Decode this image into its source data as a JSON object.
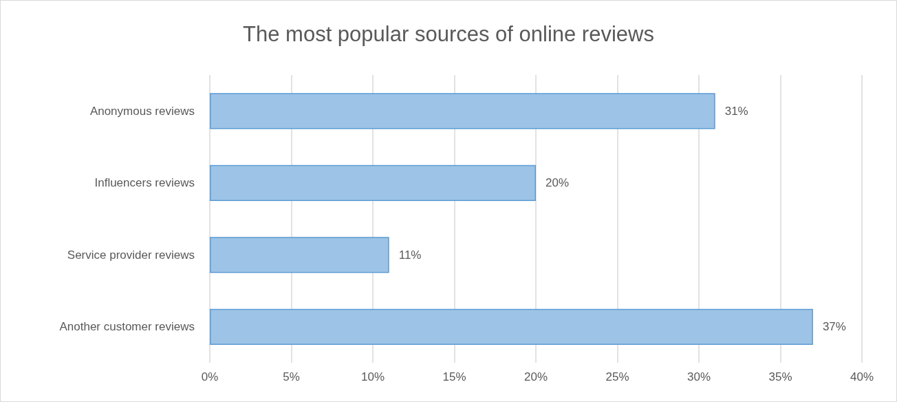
{
  "chart_data": {
    "type": "bar",
    "orientation": "horizontal",
    "title": "The most popular sources of online reviews",
    "categories": [
      "Anonymous reviews",
      "Influencers reviews",
      "Service provider reviews",
      "Another customer reviews"
    ],
    "values": [
      31,
      20,
      11,
      37
    ],
    "value_labels": [
      "31%",
      "20%",
      "11%",
      "37%"
    ],
    "color": "#9dc3e6",
    "xlim": [
      0,
      40
    ],
    "xticks": [
      {
        "value": 0,
        "label": "0%"
      },
      {
        "value": 5,
        "label": "5%"
      },
      {
        "value": 10,
        "label": "10%"
      },
      {
        "value": 15,
        "label": "15%"
      },
      {
        "value": 20,
        "label": "20%"
      },
      {
        "value": 25,
        "label": "25%"
      },
      {
        "value": 30,
        "label": "30%"
      },
      {
        "value": 35,
        "label": "35%"
      },
      {
        "value": 40,
        "label": "40%"
      }
    ],
    "grid": "x"
  }
}
